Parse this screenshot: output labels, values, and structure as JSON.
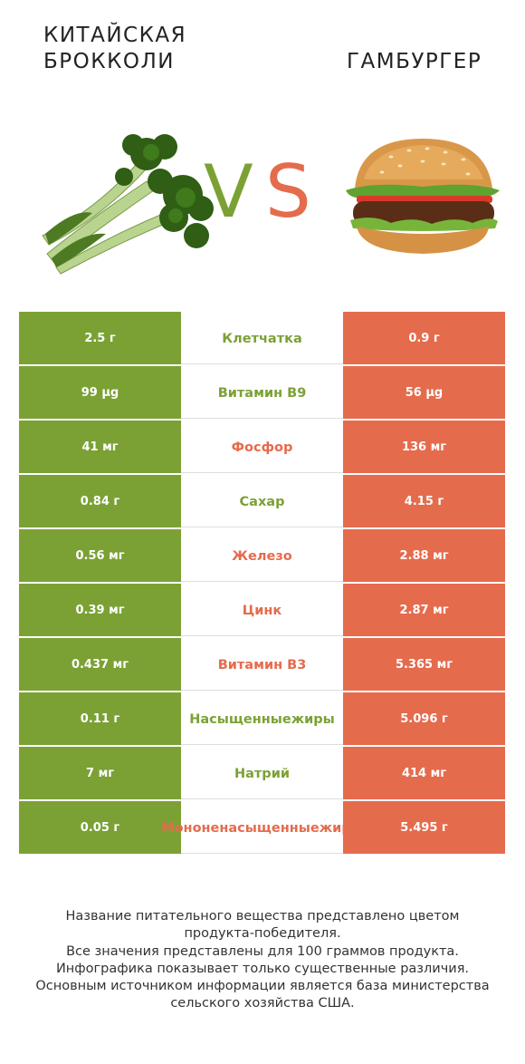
{
  "header": {
    "left_title": "Китайская брокколи",
    "right_title": "Гамбургер",
    "vs_v": "V",
    "vs_s": "S"
  },
  "colors": {
    "green": "#7ba135",
    "red": "#e56b4d"
  },
  "rows": [
    {
      "left": "2.5 г",
      "nutrient": "Клетчатка",
      "right": "0.9 г",
      "winner": "green"
    },
    {
      "left": "99 µg",
      "nutrient": "Витамин B9",
      "right": "56 µg",
      "winner": "green"
    },
    {
      "left": "41 мг",
      "nutrient": "Фосфор",
      "right": "136 мг",
      "winner": "red"
    },
    {
      "left": "0.84 г",
      "nutrient": "Сахар",
      "right": "4.15 г",
      "winner": "green"
    },
    {
      "left": "0.56 мг",
      "nutrient": "Железо",
      "right": "2.88 мг",
      "winner": "red"
    },
    {
      "left": "0.39 мг",
      "nutrient": "Цинк",
      "right": "2.87 мг",
      "winner": "red"
    },
    {
      "left": "0.437 мг",
      "nutrient": "Витамин B3",
      "right": "5.365 мг",
      "winner": "red"
    },
    {
      "left": "0.11 г",
      "nutrient": "Насыщенные жиры",
      "right": "5.096 г",
      "winner": "green"
    },
    {
      "left": "7 мг",
      "nutrient": "Натрий",
      "right": "414 мг",
      "winner": "green"
    },
    {
      "left": "0.05 г",
      "nutrient": "Мононенасыщенные жиры",
      "right": "5.495 г",
      "winner": "red"
    }
  ],
  "footer": [
    "Название питательного вещества представлено цветом",
    "продукта-победителя.",
    "Все значения представлены для 100 граммов продукта.",
    "Инфографика показывает только существенные различия.",
    "Основным источником информации является база министерства",
    "сельского хозяйства США."
  ],
  "images": {
    "left": "broccoli-image",
    "right": "hamburger-image"
  }
}
